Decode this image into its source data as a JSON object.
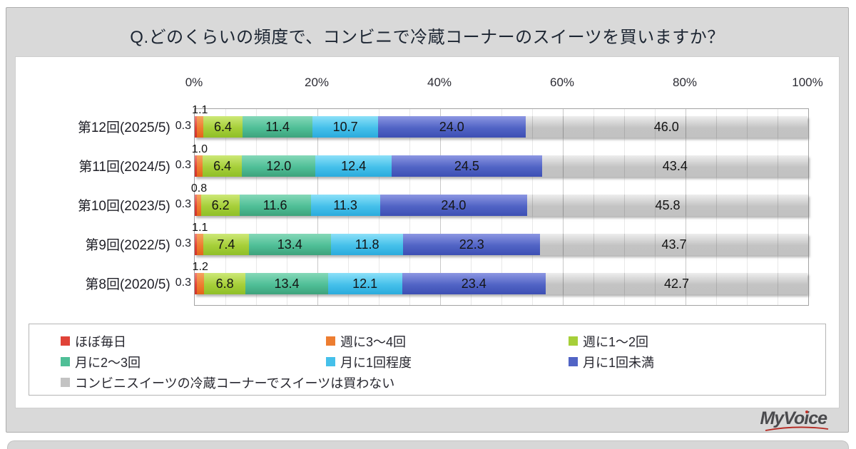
{
  "title": "Q.どのくらいの頻度で、コンビニで冷蔵コーナーのスイーツを買いますか？",
  "logo": {
    "text": "MyVoice",
    "part1": "MyVo",
    "part2": "i",
    "part3": "ce"
  },
  "chart_data": {
    "type": "bar",
    "stacked": true,
    "orientation": "horizontal",
    "unit": "%",
    "xlim": [
      0,
      100
    ],
    "x_ticks": [
      "0%",
      "20%",
      "40%",
      "60%",
      "80%",
      "100%"
    ],
    "grid": "minor 5% / major 20%",
    "legend_position": "bottom",
    "categories": [
      "第12回(2025/5)",
      "第11回(2024/5)",
      "第10回(2023/5)",
      "第9回(2022/5)",
      "第8回(2020/5)"
    ],
    "series": [
      {
        "name": "ほぼ毎日",
        "color": "#e04338",
        "color_top": "#f08078",
        "color_bottom": "#cf342b",
        "values": [
          0.3,
          0.3,
          0.3,
          0.3,
          0.3
        ],
        "label_placement": "outside-left"
      },
      {
        "name": "週に3～4回",
        "color": "#ed7d31",
        "color_top": "#f5a35e",
        "color_bottom": "#e4641a",
        "values": [
          1.1,
          1.0,
          0.8,
          1.1,
          1.2
        ],
        "label_placement": "above"
      },
      {
        "name": "週に1～2回",
        "color": "#a6cf39",
        "color_top": "#cde878",
        "color_bottom": "#8fbf28",
        "values": [
          6.4,
          6.4,
          6.2,
          7.4,
          6.8
        ],
        "label_placement": "inside"
      },
      {
        "name": "月に2～3回",
        "color": "#4fbf97",
        "color_top": "#85d8b8",
        "color_bottom": "#3da37c",
        "values": [
          11.4,
          12.0,
          11.6,
          13.4,
          13.4
        ],
        "label_placement": "inside"
      },
      {
        "name": "月に1回程度",
        "color": "#45c0ea",
        "color_top": "#8ce0f8",
        "color_bottom": "#2aabdd",
        "values": [
          10.7,
          12.4,
          11.3,
          11.8,
          12.1
        ],
        "label_placement": "inside"
      },
      {
        "name": "月に1回未満",
        "color": "#5164c5",
        "color_top": "#8c96e2",
        "color_bottom": "#3d4fb4",
        "values": [
          24.0,
          24.5,
          24.0,
          22.3,
          23.4
        ],
        "label_placement": "inside"
      },
      {
        "name": "コンビニスイーツの冷蔵コーナーでスイーツは買わない",
        "color": "#c3c3c3",
        "color_top": "#ededed",
        "color_bottom": "#c2c2c2",
        "values": [
          46.0,
          43.4,
          45.8,
          43.7,
          42.7
        ],
        "label_placement": "inside"
      }
    ]
  }
}
